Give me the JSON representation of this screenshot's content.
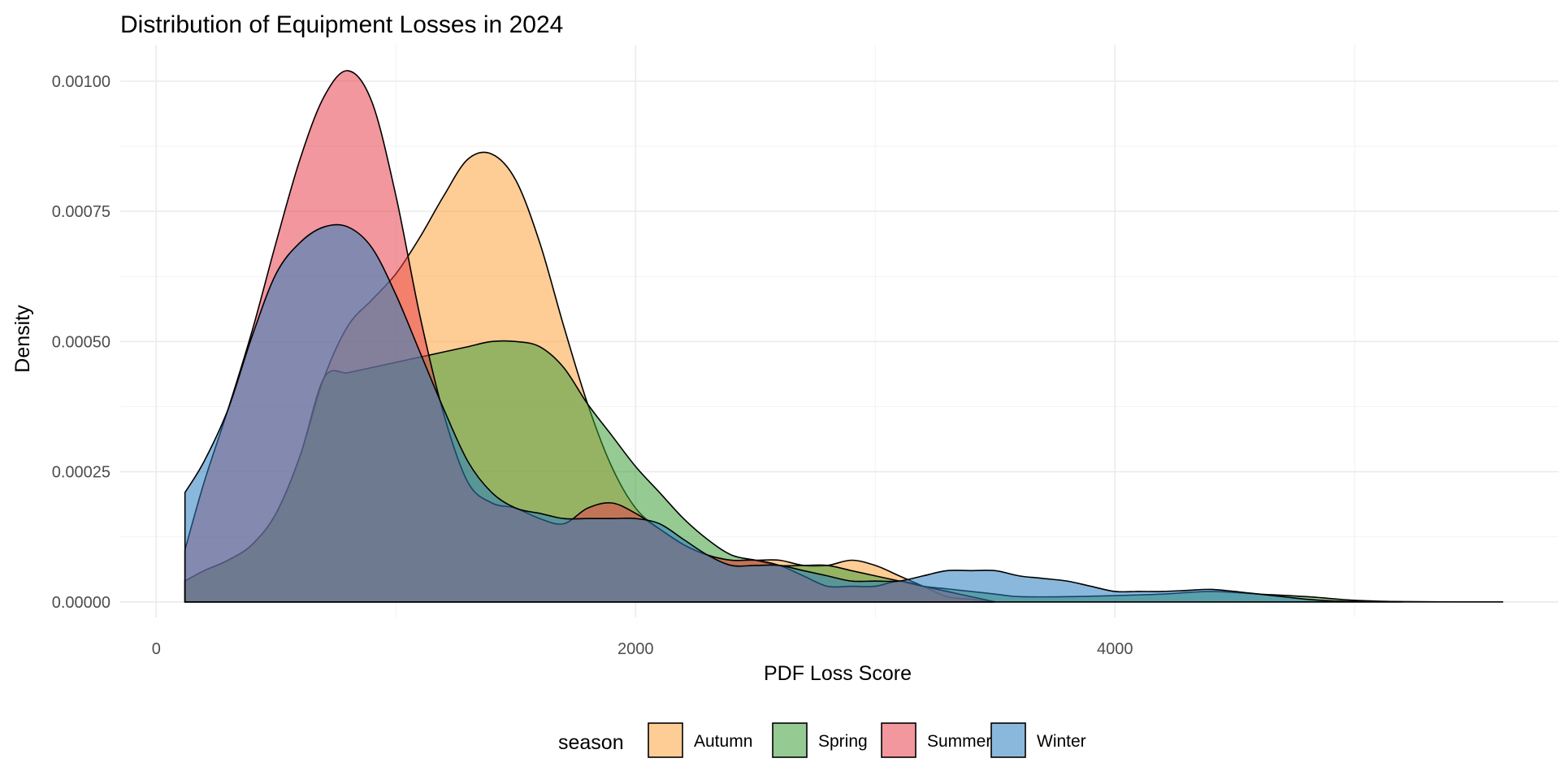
{
  "chart_data": {
    "type": "area",
    "title": "Distribution of Equipment Losses in 2024",
    "xlabel": "PDF Loss Score",
    "ylabel": "Density",
    "xlim": [
      -150,
      5850
    ],
    "ylim": [
      -3e-05,
      0.00107
    ],
    "x_ticks": [
      {
        "value": 0,
        "label": "0"
      },
      {
        "value": 2000,
        "label": "2000"
      },
      {
        "value": 4000,
        "label": "4000"
      }
    ],
    "y_ticks": [
      {
        "value": 0.0,
        "label": "0.00000"
      },
      {
        "value": 0.00025,
        "label": "0.00025"
      },
      {
        "value": 0.0005,
        "label": "0.00050"
      },
      {
        "value": 0.00075,
        "label": "0.00075"
      },
      {
        "value": 0.001,
        "label": "0.00100"
      }
    ],
    "grid": true,
    "legend": {
      "title": "season",
      "position": "bottom"
    },
    "series": [
      {
        "name": "Autumn",
        "color": "#FDA23E",
        "x": [
          120,
          200,
          300,
          400,
          500,
          600,
          700,
          800,
          900,
          1000,
          1100,
          1200,
          1300,
          1400,
          1500,
          1600,
          1700,
          1800,
          1900,
          2000,
          2100,
          2200,
          2300,
          2400,
          2500,
          2600,
          2700,
          2800,
          2900,
          3000,
          3100,
          3200,
          3300,
          3400,
          3500
        ],
        "y": [
          4e-05,
          6e-05,
          8e-05,
          0.00011,
          0.00017,
          0.00028,
          0.00043,
          0.00053,
          0.00058,
          0.00063,
          0.0007,
          0.00078,
          0.00085,
          0.00086,
          0.00081,
          0.00069,
          0.00053,
          0.00038,
          0.00026,
          0.00018,
          0.00014,
          0.00011,
          9e-05,
          8e-05,
          8e-05,
          8e-05,
          7e-05,
          7e-05,
          8e-05,
          7e-05,
          5e-05,
          3e-05,
          1e-05,
          5e-06,
          0.0
        ]
      },
      {
        "name": "Spring",
        "color": "#3F9F3A",
        "x": [
          120,
          200,
          300,
          400,
          500,
          600,
          700,
          800,
          900,
          1000,
          1100,
          1200,
          1300,
          1400,
          1500,
          1600,
          1700,
          1800,
          1900,
          2000,
          2100,
          2200,
          2300,
          2400,
          2500,
          2600,
          2700,
          2800,
          2900,
          3000,
          3100,
          3200,
          3300,
          3400,
          3500,
          3600,
          3800,
          4000,
          4200,
          4400,
          4600,
          4800,
          5000,
          5200
        ],
        "y": [
          4e-05,
          6e-05,
          8e-05,
          0.00011,
          0.00017,
          0.00028,
          0.00043,
          0.00044,
          0.00045,
          0.00046,
          0.00047,
          0.00048,
          0.00049,
          0.0005,
          0.0005,
          0.00049,
          0.00045,
          0.00038,
          0.00032,
          0.00026,
          0.00021,
          0.00016,
          0.00012,
          9e-05,
          8e-05,
          7e-05,
          7e-05,
          7e-05,
          6e-05,
          5e-05,
          4e-05,
          3e-05,
          2.5e-05,
          2e-05,
          1.5e-05,
          1e-05,
          1e-05,
          1.2e-05,
          1.5e-05,
          2e-05,
          1.5e-05,
          1e-05,
          3e-06,
          0.0
        ]
      },
      {
        "name": "Summer",
        "color": "#E8414D",
        "x": [
          120,
          200,
          300,
          400,
          500,
          600,
          700,
          800,
          900,
          1000,
          1100,
          1200,
          1300,
          1400,
          1500,
          1600,
          1700,
          1800,
          1900,
          2000,
          2100,
          2200,
          2300,
          2400,
          2500,
          2600,
          2700,
          2800,
          2900,
          3000,
          3100,
          3200,
          3300,
          3400,
          3500
        ],
        "y": [
          0.0001,
          0.00023,
          0.00037,
          0.00052,
          0.00069,
          0.00085,
          0.00097,
          0.00102,
          0.00096,
          0.00078,
          0.00055,
          0.00036,
          0.00023,
          0.00019,
          0.00018,
          0.00016,
          0.00015,
          0.00018,
          0.00019,
          0.00017,
          0.00014,
          0.00011,
          9e-05,
          8e-05,
          8e-05,
          7e-05,
          5e-05,
          3e-05,
          3e-05,
          3e-05,
          4e-05,
          3e-05,
          2e-05,
          1e-05,
          0.0
        ]
      },
      {
        "name": "Winter",
        "color": "#2A7DBF",
        "x": [
          120,
          200,
          300,
          400,
          500,
          600,
          700,
          800,
          900,
          1000,
          1100,
          1200,
          1300,
          1400,
          1500,
          1600,
          1700,
          1800,
          1900,
          2000,
          2100,
          2200,
          2300,
          2400,
          2500,
          2600,
          2700,
          2800,
          2900,
          3000,
          3100,
          3200,
          3300,
          3400,
          3500,
          3600,
          3700,
          3800,
          3900,
          4000,
          4100,
          4200,
          4300,
          4400,
          4500,
          4600,
          4700,
          4800,
          4900,
          5000,
          5200,
          5400,
          5620
        ],
        "y": [
          0.00021,
          0.00027,
          0.00037,
          0.00051,
          0.00063,
          0.00069,
          0.00072,
          0.00072,
          0.00068,
          0.00059,
          0.00048,
          0.00037,
          0.00027,
          0.00021,
          0.00018,
          0.00017,
          0.00016,
          0.00016,
          0.00016,
          0.00016,
          0.00015,
          0.00012,
          9e-05,
          7e-05,
          7e-05,
          7e-05,
          6e-05,
          5e-05,
          4e-05,
          4e-05,
          4e-05,
          5e-05,
          6e-05,
          6e-05,
          6e-05,
          5e-05,
          4.5e-05,
          4e-05,
          3e-05,
          2e-05,
          2e-05,
          2e-05,
          2.2e-05,
          2.4e-05,
          2e-05,
          1.5e-05,
          1e-05,
          5e-06,
          2e-06,
          1e-06,
          5e-07,
          0.0,
          0.0
        ]
      }
    ]
  }
}
